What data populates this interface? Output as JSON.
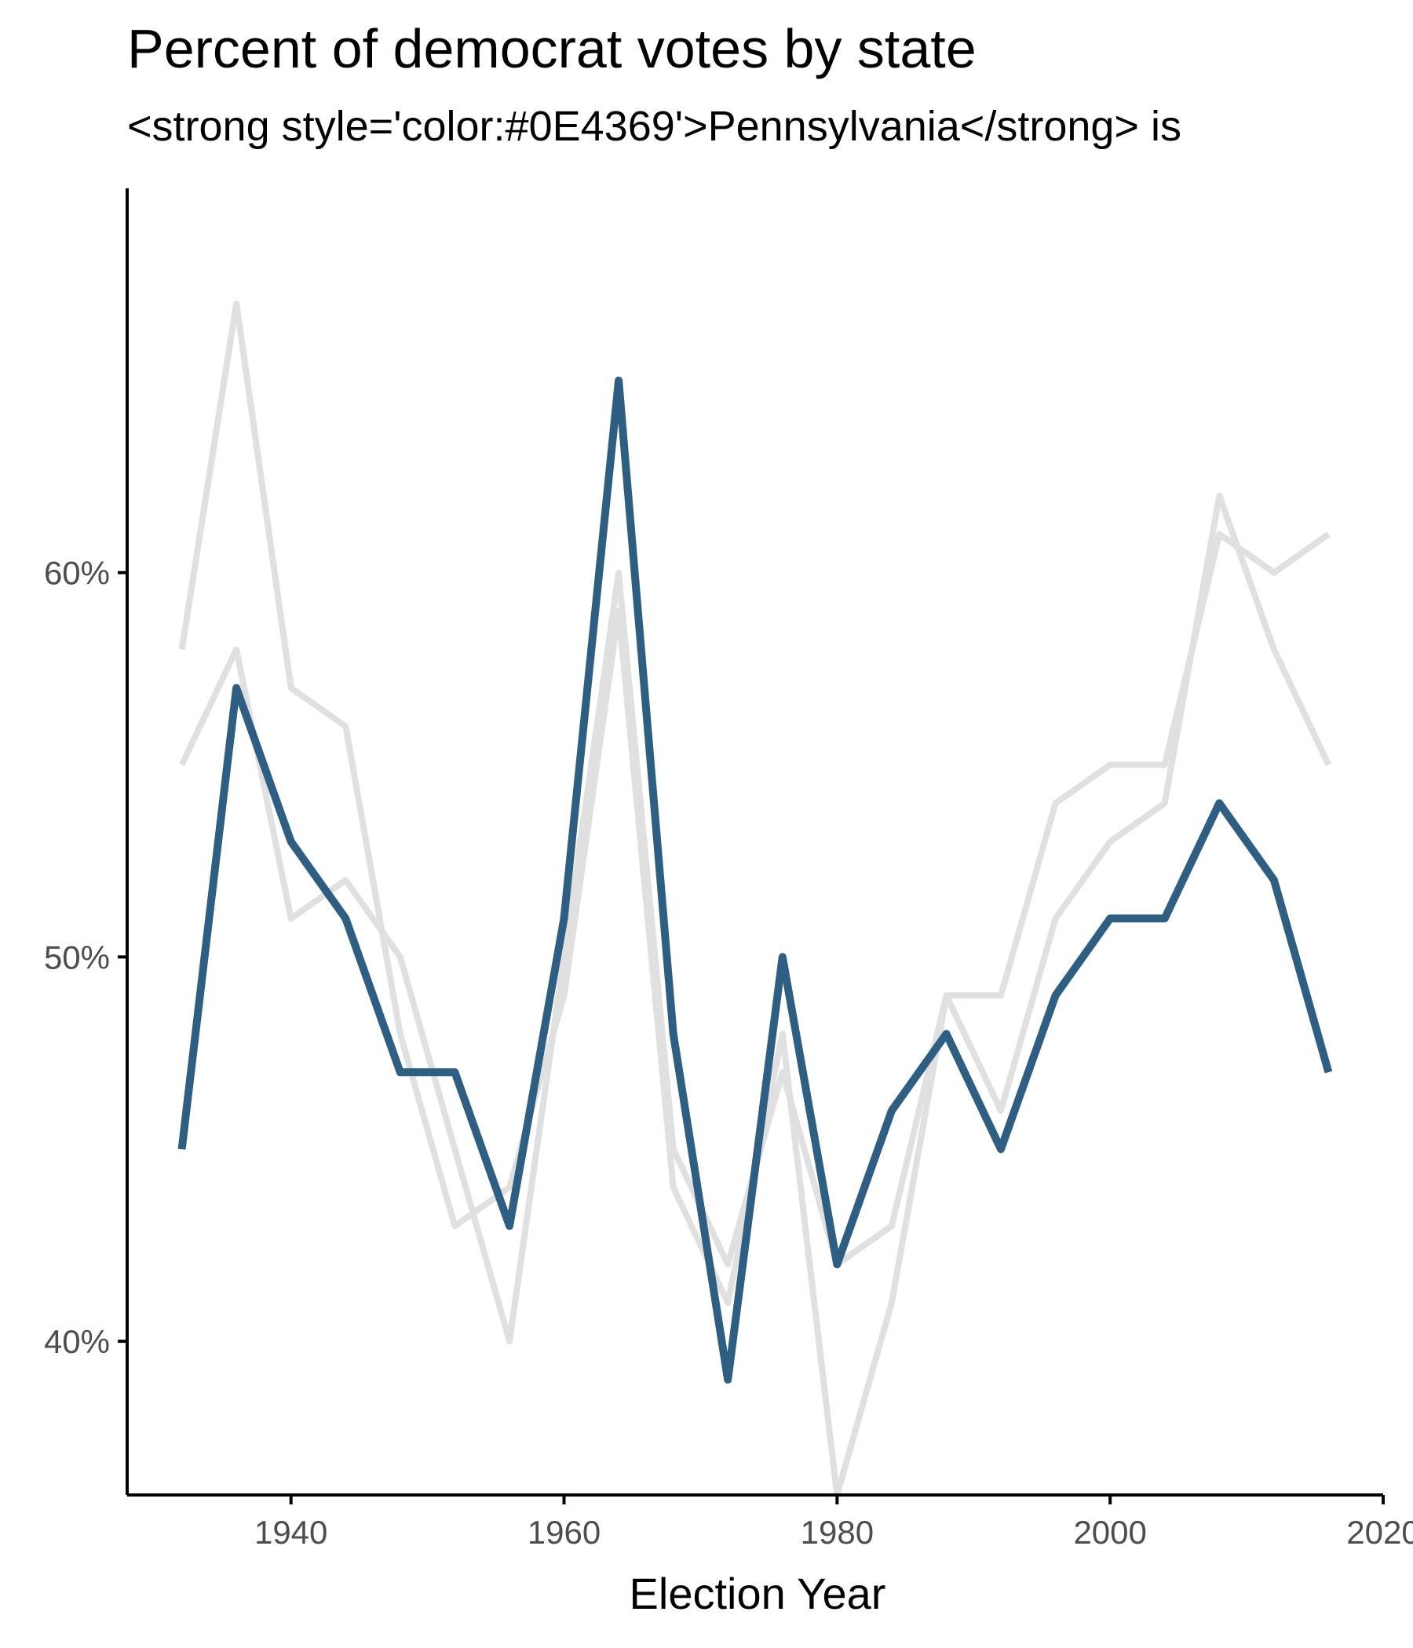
{
  "title": "Percent of democrat votes by state",
  "subtitle": "<strong style='color:#0E4369'>Pennsylvania</strong> is",
  "colors": {
    "highlight": "#2E5F82",
    "background_series": "#E0E0E0",
    "axis": "#000000",
    "tick_text": "#4D4D4D"
  },
  "chart_data": {
    "type": "line",
    "title": "Percent of democrat votes by state",
    "xlabel": "Election Year",
    "ylabel": "",
    "xlim": [
      1928,
      2020
    ],
    "ylim": [
      36,
      70
    ],
    "x_ticks": [
      1940,
      1960,
      1980,
      2000,
      2020
    ],
    "x_tick_labels": [
      "1940",
      "1960",
      "1980",
      "2000",
      "2020"
    ],
    "y_ticks": [
      40,
      50,
      60
    ],
    "y_tick_labels": [
      "40%",
      "50%",
      "60%"
    ],
    "grid": false,
    "legend": "none",
    "x": [
      1932,
      1936,
      1940,
      1944,
      1948,
      1952,
      1956,
      1960,
      1964,
      1968,
      1972,
      1976,
      1980,
      1984,
      1988,
      1992,
      1996,
      2000,
      2004,
      2008,
      2012,
      2016
    ],
    "series": [
      {
        "values": [
          58,
          67,
          57,
          56,
          48,
          43,
          44,
          49,
          59,
          44,
          41,
          48,
          36,
          41,
          49,
          49,
          54,
          55,
          55,
          61,
          60,
          61
        ]
      },
      {
        "values": [
          55,
          58,
          51,
          52,
          50,
          45,
          40,
          50,
          60,
          45,
          42,
          47,
          42,
          43,
          49,
          46,
          51,
          53,
          54,
          62,
          58,
          55
        ]
      },
      {
        "name": "Pennsylvania",
        "highlight": true,
        "values": [
          45,
          57,
          53,
          51,
          47,
          47,
          43,
          51,
          65,
          48,
          39,
          50,
          42,
          46,
          48,
          45,
          49,
          51,
          51,
          54,
          52,
          47
        ]
      }
    ]
  }
}
